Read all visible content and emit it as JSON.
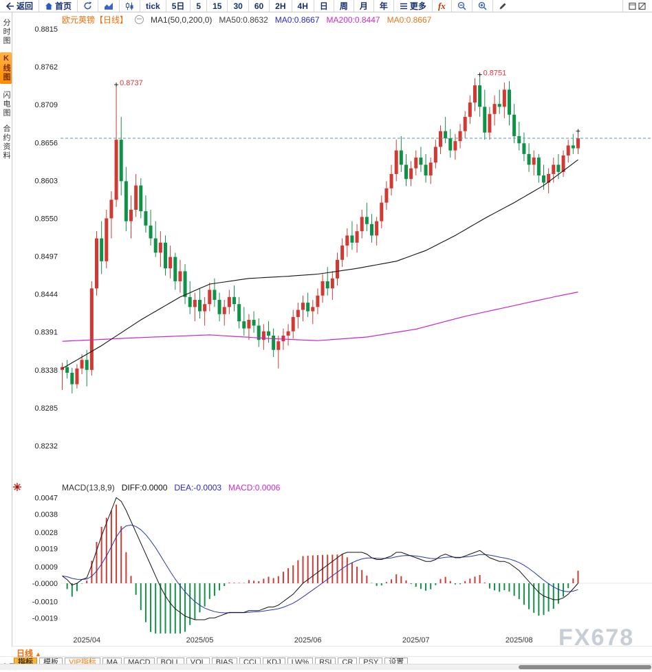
{
  "watermark": "FX678",
  "toolbar": {
    "items": [
      {
        "name": "back",
        "label": "返回",
        "icon": "back"
      },
      {
        "name": "home",
        "label": "首页",
        "icon": "home"
      },
      {
        "name": "refresh",
        "icon": "refresh"
      },
      {
        "name": "area-chart",
        "icon": "area"
      },
      {
        "name": "candle-chart",
        "icon": "candles"
      },
      {
        "name": "tick",
        "label": "tick"
      },
      {
        "name": "period-5d",
        "label": "5日"
      },
      {
        "name": "period-5",
        "label": "5"
      },
      {
        "name": "period-15",
        "label": "15"
      },
      {
        "name": "period-30",
        "label": "30"
      },
      {
        "name": "period-60",
        "label": "60"
      },
      {
        "name": "period-2h",
        "label": "2H"
      },
      {
        "name": "period-4h",
        "label": "4H"
      },
      {
        "name": "period-day",
        "label": "日"
      },
      {
        "name": "period-week",
        "label": "周"
      },
      {
        "name": "period-month",
        "label": "月"
      },
      {
        "name": "period-year",
        "label": "年"
      },
      {
        "name": "more",
        "label": "更多",
        "icon": "menu"
      },
      {
        "name": "fx",
        "label": "fx"
      },
      {
        "name": "zoom-out",
        "icon": "zoom-out"
      },
      {
        "name": "zoom-in",
        "icon": "zoom-in"
      },
      {
        "name": "draw",
        "icon": "pencil"
      },
      {
        "name": "window-layout",
        "icon": "windows",
        "pin_right": true
      }
    ]
  },
  "sidebar": {
    "items": [
      {
        "name": "time-chart",
        "label": "分时图"
      },
      {
        "name": "kline-chart",
        "label": "K线图",
        "active": true
      },
      {
        "name": "lightning-chart",
        "label": "闪电图"
      },
      {
        "name": "contract-info",
        "label": "合约资料"
      }
    ]
  },
  "price_chart": {
    "title": "欧元英镑【日线】",
    "legend": [
      {
        "text": "MA1(50,0,200,0)",
        "color": "#333333"
      },
      {
        "text": "MA50:0.8632",
        "color": "#444444"
      },
      {
        "text": "MA0:0.8667",
        "color": "#2929cc"
      },
      {
        "text": "MA200:0.8447",
        "color": "#cc29cc"
      },
      {
        "text": "MA0:0.8667",
        "color": "#e07818"
      }
    ]
  },
  "macd_panel": {
    "legend": [
      {
        "text": "MACD(13,8,9)",
        "color": "#333333"
      },
      {
        "text": "DIFF:0.0000",
        "color": "#111111"
      },
      {
        "text": "DEA:-0.0003",
        "color": "#2929cc"
      },
      {
        "text": "MACD:0.0006",
        "color": "#cc29cc"
      }
    ]
  },
  "bottom": {
    "period_label": "日线",
    "period_arrow": "▲",
    "partial_text": "主图",
    "tabs": [
      {
        "label": "指标",
        "selected": true
      },
      {
        "label": "模板"
      },
      {
        "label": "VIP指标",
        "vip": true
      },
      {
        "label": "MA"
      },
      {
        "label": "MACD"
      },
      {
        "label": "BOLL"
      },
      {
        "label": "VOL"
      },
      {
        "label": "BIAS"
      },
      {
        "label": "CCI"
      },
      {
        "label": "KDJ"
      },
      {
        "label": "LW%"
      },
      {
        "label": "RSI"
      },
      {
        "label": "CR"
      },
      {
        "label": "PSY"
      },
      {
        "label": "设置"
      }
    ]
  },
  "chart_data": {
    "type": "candlestick",
    "symbol": "欧元英镑",
    "period": "日线",
    "price_axis_labels": [
      "0.8815",
      "0.8762",
      "0.8709",
      "0.8656",
      "0.8603",
      "0.8550",
      "0.8497",
      "0.8444",
      "0.8391",
      "0.8338",
      "0.8285",
      "0.8232"
    ],
    "x_axis_ticks": [
      {
        "index": 5,
        "label": "2025/04"
      },
      {
        "index": 28,
        "label": "2025/05"
      },
      {
        "index": 50,
        "label": "2025/06"
      },
      {
        "index": 72,
        "label": "2025/07"
      },
      {
        "index": 93,
        "label": "2025/08"
      }
    ],
    "current_price": 0.8662,
    "annotations": [
      {
        "index": 11,
        "price": 0.8737,
        "label": "0.8737"
      },
      {
        "index": 85,
        "price": 0.8751,
        "label": "0.8751"
      }
    ],
    "candles_ohlc": [
      [
        0.8338,
        0.8348,
        0.831,
        0.8342
      ],
      [
        0.8342,
        0.8352,
        0.8326,
        0.8334
      ],
      [
        0.8334,
        0.8341,
        0.8305,
        0.8318
      ],
      [
        0.8318,
        0.8346,
        0.8312,
        0.834
      ],
      [
        0.834,
        0.836,
        0.8332,
        0.8352
      ],
      [
        0.8352,
        0.8366,
        0.8315,
        0.8338
      ],
      [
        0.8338,
        0.8462,
        0.833,
        0.8452
      ],
      [
        0.8452,
        0.8532,
        0.8442,
        0.8522
      ],
      [
        0.8522,
        0.8546,
        0.8472,
        0.849
      ],
      [
        0.849,
        0.8562,
        0.848,
        0.855
      ],
      [
        0.855,
        0.8588,
        0.8522,
        0.8576
      ],
      [
        0.8576,
        0.8737,
        0.8566,
        0.866
      ],
      [
        0.866,
        0.8692,
        0.8582,
        0.8602
      ],
      [
        0.8602,
        0.8622,
        0.8532,
        0.8546
      ],
      [
        0.8546,
        0.8582,
        0.8522,
        0.8562
      ],
      [
        0.8562,
        0.8612,
        0.8552,
        0.8596
      ],
      [
        0.8596,
        0.8606,
        0.855,
        0.856
      ],
      [
        0.856,
        0.8582,
        0.853,
        0.854
      ],
      [
        0.854,
        0.8562,
        0.8512,
        0.8522
      ],
      [
        0.8522,
        0.8546,
        0.8496,
        0.8502
      ],
      [
        0.8502,
        0.8532,
        0.8482,
        0.8516
      ],
      [
        0.8516,
        0.8526,
        0.847,
        0.848
      ],
      [
        0.848,
        0.8512,
        0.8466,
        0.8496
      ],
      [
        0.8496,
        0.8502,
        0.845,
        0.8462
      ],
      [
        0.8462,
        0.8492,
        0.8446,
        0.8476
      ],
      [
        0.8476,
        0.8486,
        0.843,
        0.844
      ],
      [
        0.844,
        0.8462,
        0.8416,
        0.8426
      ],
      [
        0.8426,
        0.8446,
        0.8406,
        0.8436
      ],
      [
        0.8436,
        0.8452,
        0.841,
        0.842
      ],
      [
        0.842,
        0.844,
        0.84,
        0.843
      ],
      [
        0.843,
        0.846,
        0.842,
        0.845
      ],
      [
        0.845,
        0.8466,
        0.8426,
        0.8436
      ],
      [
        0.8436,
        0.8446,
        0.8406,
        0.8416
      ],
      [
        0.8416,
        0.8436,
        0.84,
        0.8426
      ],
      [
        0.8426,
        0.845,
        0.8416,
        0.844
      ],
      [
        0.844,
        0.8456,
        0.842,
        0.843
      ],
      [
        0.843,
        0.844,
        0.8396,
        0.8406
      ],
      [
        0.8406,
        0.8426,
        0.8386,
        0.8396
      ],
      [
        0.8396,
        0.8416,
        0.838,
        0.8408
      ],
      [
        0.8408,
        0.842,
        0.839,
        0.84
      ],
      [
        0.84,
        0.841,
        0.837,
        0.838
      ],
      [
        0.838,
        0.8402,
        0.8366,
        0.8392
      ],
      [
        0.8392,
        0.8406,
        0.8376,
        0.8386
      ],
      [
        0.8386,
        0.8396,
        0.8356,
        0.8366
      ],
      [
        0.8366,
        0.8386,
        0.834,
        0.8378
      ],
      [
        0.8378,
        0.8396,
        0.8366,
        0.8386
      ],
      [
        0.8386,
        0.8402,
        0.8372,
        0.8392
      ],
      [
        0.8392,
        0.8422,
        0.8382,
        0.8412
      ],
      [
        0.8412,
        0.8432,
        0.8396,
        0.8422
      ],
      [
        0.8422,
        0.8442,
        0.8406,
        0.8432
      ],
      [
        0.8432,
        0.8446,
        0.8412,
        0.842
      ],
      [
        0.842,
        0.8436,
        0.8402,
        0.8426
      ],
      [
        0.8426,
        0.8452,
        0.8416,
        0.8442
      ],
      [
        0.8442,
        0.8472,
        0.8432,
        0.8462
      ],
      [
        0.8462,
        0.8482,
        0.8442,
        0.8452
      ],
      [
        0.8452,
        0.8476,
        0.8436,
        0.8466
      ],
      [
        0.8466,
        0.8502,
        0.8456,
        0.8492
      ],
      [
        0.8492,
        0.8522,
        0.8482,
        0.8512
      ],
      [
        0.8512,
        0.8536,
        0.8496,
        0.8526
      ],
      [
        0.8526,
        0.8546,
        0.8506,
        0.8516
      ],
      [
        0.8516,
        0.8542,
        0.8502,
        0.8532
      ],
      [
        0.8532,
        0.8562,
        0.8522,
        0.8552
      ],
      [
        0.8552,
        0.8572,
        0.8532,
        0.8542
      ],
      [
        0.8542,
        0.8556,
        0.8516,
        0.8526
      ],
      [
        0.8526,
        0.8552,
        0.8512,
        0.8546
      ],
      [
        0.8546,
        0.8582,
        0.8536,
        0.8572
      ],
      [
        0.8572,
        0.8602,
        0.8562,
        0.8592
      ],
      [
        0.8592,
        0.8625,
        0.8582,
        0.8612
      ],
      [
        0.8612,
        0.866,
        0.8602,
        0.8645
      ],
      [
        0.8645,
        0.8665,
        0.8615,
        0.8625
      ],
      [
        0.8625,
        0.864,
        0.8595,
        0.8605
      ],
      [
        0.8605,
        0.863,
        0.8595,
        0.862
      ],
      [
        0.862,
        0.8645,
        0.861,
        0.8635
      ],
      [
        0.8635,
        0.865,
        0.8615,
        0.8625
      ],
      [
        0.8625,
        0.864,
        0.86,
        0.861
      ],
      [
        0.861,
        0.8635,
        0.8598,
        0.8628
      ],
      [
        0.8628,
        0.866,
        0.862,
        0.865
      ],
      [
        0.865,
        0.868,
        0.864,
        0.8672
      ],
      [
        0.8672,
        0.8692,
        0.8655,
        0.8662
      ],
      [
        0.8662,
        0.8675,
        0.8635,
        0.8645
      ],
      [
        0.8645,
        0.8668,
        0.8632,
        0.8658
      ],
      [
        0.8658,
        0.8682,
        0.8648,
        0.8672
      ],
      [
        0.8672,
        0.87,
        0.8662,
        0.8692
      ],
      [
        0.8692,
        0.8722,
        0.8682,
        0.8712
      ],
      [
        0.8712,
        0.8746,
        0.87,
        0.8736
      ],
      [
        0.8736,
        0.8751,
        0.8692,
        0.8706
      ],
      [
        0.8706,
        0.873,
        0.866,
        0.867
      ],
      [
        0.867,
        0.8706,
        0.866,
        0.8696
      ],
      [
        0.8696,
        0.8722,
        0.868,
        0.871
      ],
      [
        0.871,
        0.873,
        0.8696,
        0.8706
      ],
      [
        0.8706,
        0.874,
        0.869,
        0.873
      ],
      [
        0.873,
        0.8742,
        0.868,
        0.8695
      ],
      [
        0.8695,
        0.871,
        0.8655,
        0.8665
      ],
      [
        0.8665,
        0.8685,
        0.8645,
        0.8655
      ],
      [
        0.8655,
        0.867,
        0.863,
        0.864
      ],
      [
        0.864,
        0.8655,
        0.8615,
        0.8625
      ],
      [
        0.8625,
        0.8645,
        0.861,
        0.8635
      ],
      [
        0.8635,
        0.864,
        0.86,
        0.861
      ],
      [
        0.861,
        0.8625,
        0.859,
        0.86
      ],
      [
        0.86,
        0.862,
        0.8585,
        0.8612
      ],
      [
        0.8612,
        0.8635,
        0.86,
        0.8625
      ],
      [
        0.8625,
        0.864,
        0.8605,
        0.8615
      ],
      [
        0.8615,
        0.8645,
        0.8608,
        0.8638
      ],
      [
        0.8638,
        0.866,
        0.8628,
        0.8652
      ],
      [
        0.8652,
        0.8668,
        0.864,
        0.8648
      ],
      [
        0.8648,
        0.8672,
        0.864,
        0.8662
      ]
    ],
    "ma50": {
      "last_value": 0.8632,
      "points": [
        [
          0,
          0.834
        ],
        [
          8,
          0.8372
        ],
        [
          16,
          0.8408
        ],
        [
          24,
          0.844
        ],
        [
          30,
          0.8458
        ],
        [
          38,
          0.8466
        ],
        [
          46,
          0.8469
        ],
        [
          52,
          0.8472
        ],
        [
          60,
          0.848
        ],
        [
          68,
          0.849
        ],
        [
          74,
          0.8505
        ],
        [
          80,
          0.8526
        ],
        [
          86,
          0.855
        ],
        [
          92,
          0.8572
        ],
        [
          98,
          0.8596
        ],
        [
          105,
          0.8632
        ]
      ]
    },
    "ma200": {
      "last_value": 0.8447,
      "points": [
        [
          0,
          0.8378
        ],
        [
          15,
          0.8383
        ],
        [
          30,
          0.8387
        ],
        [
          42,
          0.8382
        ],
        [
          52,
          0.8379
        ],
        [
          62,
          0.8384
        ],
        [
          72,
          0.8395
        ],
        [
          82,
          0.8413
        ],
        [
          92,
          0.8428
        ],
        [
          100,
          0.844
        ],
        [
          105,
          0.8447
        ]
      ]
    },
    "macd": {
      "params": "13,8,9",
      "diff_last": 0.0,
      "dea_last": -0.0003,
      "hist_last": 0.0006,
      "axis_labels": [
        "0.0047",
        "0.0038",
        "0.0028",
        "0.0019",
        "0.0009",
        "-0.0000",
        "-0.0010",
        "-0.0019"
      ],
      "diff_series": [
        0.0004,
        0.0002,
        -0.0001,
        0.0,
        0.0002,
        0.0003,
        0.001,
        0.0018,
        0.0026,
        0.0033,
        0.004,
        0.0047,
        0.0045,
        0.004,
        0.0034,
        0.0028,
        0.0022,
        0.0016,
        0.001,
        0.0004,
        -0.0002,
        -0.0007,
        -0.0011,
        -0.0014,
        -0.0016,
        -0.0018,
        -0.0019,
        -0.002,
        -0.002,
        -0.002,
        -0.0019,
        -0.0019,
        -0.0018,
        -0.0017,
        -0.0016,
        -0.0016,
        -0.0016,
        -0.0016,
        -0.0015,
        -0.0015,
        -0.0015,
        -0.0014,
        -0.0013,
        -0.0013,
        -0.0012,
        -0.001,
        -0.0008,
        -0.0006,
        -0.0003,
        0.0,
        0.0002,
        0.0004,
        0.0006,
        0.0008,
        0.001,
        0.0012,
        0.0014,
        0.0016,
        0.0017,
        0.0017,
        0.0017,
        0.0017,
        0.0016,
        0.0014,
        0.0013,
        0.0013,
        0.0014,
        0.0015,
        0.0017,
        0.0017,
        0.0016,
        0.0015,
        0.0014,
        0.0013,
        0.0012,
        0.0012,
        0.0013,
        0.0015,
        0.0016,
        0.0015,
        0.0014,
        0.0014,
        0.0015,
        0.0016,
        0.0017,
        0.0018,
        0.0016,
        0.0014,
        0.0013,
        0.0012,
        0.0012,
        0.0011,
        0.0009,
        0.0007,
        0.0004,
        0.0001,
        -0.0002,
        -0.0005,
        -0.0007,
        -0.0008,
        -0.0009,
        -0.0009,
        -0.0008,
        -0.0006,
        -0.0003,
        0.0
      ]
    },
    "colors": {
      "up": "#d03a33",
      "down": "#0f9147",
      "ma50": "#111111",
      "ma200": "#cc22cc",
      "diff": "#111111",
      "dea": "#2436b8",
      "current_line": "#4d9aab",
      "annotation": "#e23333"
    }
  }
}
